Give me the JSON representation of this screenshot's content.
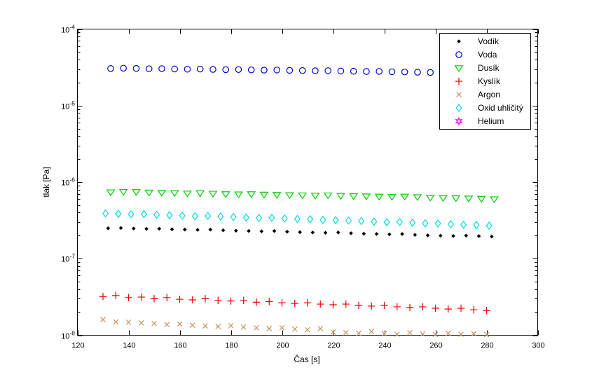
{
  "figure": {
    "background": "#ffffff",
    "frame_color": "#000000"
  },
  "chart_data": {
    "type": "scatter",
    "title": "",
    "xlabel": "Čas [s]",
    "ylabel": "tlak [Pa]",
    "x_scale": "linear",
    "y_scale": "log",
    "xlim": [
      120,
      300
    ],
    "ylim": [
      1e-08,
      0.0001
    ],
    "x_ticks": [
      120,
      140,
      160,
      180,
      200,
      220,
      240,
      260,
      280,
      300
    ],
    "y_tick_exponents": [
      -4,
      -5,
      -6,
      -7,
      -8
    ],
    "y_tick_base": "10",
    "grid": false,
    "legend_position": "upper right",
    "series": [
      {
        "key": "vodik",
        "name": "Vodík",
        "marker": "dot",
        "color": "#000000",
        "t": [
          132,
          137,
          142,
          147,
          152,
          157,
          162,
          167,
          172,
          177,
          182,
          187,
          192,
          197,
          202,
          207,
          212,
          217,
          222,
          227,
          232,
          237,
          242,
          247,
          252,
          257,
          262,
          267,
          272,
          277,
          282
        ],
        "p": [
          2.5e-07,
          2.52e-07,
          2.48e-07,
          2.45e-07,
          2.46e-07,
          2.42e-07,
          2.4e-07,
          2.38e-07,
          2.4e-07,
          2.35e-07,
          2.32e-07,
          2.3e-07,
          2.28e-07,
          2.3e-07,
          2.25e-07,
          2.22e-07,
          2.2e-07,
          2.18e-07,
          2.2e-07,
          2.15e-07,
          2.12e-07,
          2.1e-07,
          2.08e-07,
          2.1e-07,
          2.05e-07,
          2.02e-07,
          2e-07,
          1.98e-07,
          2e-07,
          1.97e-07,
          1.95e-07
        ]
      },
      {
        "key": "voda",
        "name": "Voda",
        "marker": "circle",
        "color": "#0000DD",
        "t": [
          133,
          138,
          143,
          148,
          153,
          158,
          163,
          168,
          173,
          178,
          183,
          188,
          193,
          198,
          203,
          208,
          213,
          218,
          223,
          228,
          233,
          238,
          243,
          248,
          253,
          258,
          263,
          268,
          273,
          278,
          283
        ],
        "p": [
          3.05e-05,
          3.08e-05,
          3.06e-05,
          3.03e-05,
          3.04e-05,
          3.01e-05,
          2.99e-05,
          3e-05,
          2.97e-05,
          2.95e-05,
          2.96e-05,
          2.93e-05,
          2.91e-05,
          2.92e-05,
          2.89e-05,
          2.87e-05,
          2.85e-05,
          2.86e-05,
          2.83e-05,
          2.81e-05,
          2.79e-05,
          2.8e-05,
          2.77e-05,
          2.75e-05,
          2.73e-05,
          2.71e-05,
          2.72e-05,
          2.69e-05,
          2.67e-05,
          2.65e-05,
          2.63e-05
        ]
      },
      {
        "key": "dusik",
        "name": "Dusík",
        "marker": "triangle-down",
        "color": "#00CF00",
        "t": [
          133,
          138,
          143,
          148,
          153,
          158,
          163,
          168,
          173,
          178,
          183,
          188,
          193,
          198,
          203,
          208,
          213,
          218,
          223,
          228,
          233,
          238,
          243,
          248,
          253,
          258,
          263,
          268,
          273,
          278,
          283
        ],
        "p": [
          7.4e-07,
          7.5e-07,
          7.45e-07,
          7.35e-07,
          7.3e-07,
          7.25e-07,
          7.15e-07,
          7.2e-07,
          7.1e-07,
          7e-07,
          6.95e-07,
          7e-07,
          6.9e-07,
          6.85e-07,
          6.8e-07,
          6.75e-07,
          6.7e-07,
          6.75e-07,
          6.65e-07,
          6.6e-07,
          6.55e-07,
          6.5e-07,
          6.45e-07,
          6.5e-07,
          6.4e-07,
          6.3e-07,
          6.25e-07,
          6.2e-07,
          6.15e-07,
          6.1e-07,
          6e-07
        ]
      },
      {
        "key": "kyslik",
        "name": "Kyslík",
        "marker": "plus",
        "color": "#EE0000",
        "t": [
          130,
          135,
          140,
          145,
          150,
          155,
          160,
          165,
          170,
          175,
          180,
          185,
          190,
          195,
          200,
          205,
          210,
          215,
          220,
          225,
          230,
          235,
          240,
          245,
          250,
          255,
          260,
          265,
          270,
          275,
          280
        ],
        "p": [
          3.2e-08,
          3.3e-08,
          3.1e-08,
          3.15e-08,
          3e-08,
          3.1e-08,
          2.95e-08,
          2.9e-08,
          3e-08,
          2.85e-08,
          2.8e-08,
          2.85e-08,
          2.7e-08,
          2.75e-08,
          2.65e-08,
          2.6e-08,
          2.65e-08,
          2.55e-08,
          2.5e-08,
          2.55e-08,
          2.45e-08,
          2.4e-08,
          2.45e-08,
          2.35e-08,
          2.3e-08,
          2.35e-08,
          2.25e-08,
          2.2e-08,
          2.25e-08,
          2.15e-08,
          2.1e-08
        ]
      },
      {
        "key": "argon",
        "name": "Argon",
        "marker": "x",
        "color": "#C4935B",
        "t": [
          130,
          135,
          140,
          145,
          150,
          155,
          160,
          165,
          170,
          175,
          180,
          185,
          190,
          195,
          200,
          205,
          210,
          215,
          220,
          225,
          230,
          235,
          240,
          245,
          250,
          255,
          260,
          265,
          270,
          275,
          280
        ],
        "p": [
          1.6e-08,
          1.5e-08,
          1.48e-08,
          1.45e-08,
          1.42e-08,
          1.38e-08,
          1.4e-08,
          1.35e-08,
          1.32e-08,
          1.3e-08,
          1.33e-08,
          1.28e-08,
          1.25e-08,
          1.22e-08,
          1.25e-08,
          1.2e-08,
          1.18e-08,
          1.22e-08,
          1.1e-08,
          1.08e-08,
          1.06e-08,
          1.12e-08,
          1.05e-08,
          1.03e-08,
          1.08e-08,
          1.04e-08,
          1.02e-08,
          1.06e-08,
          1.03e-08,
          1.05e-08,
          1.02e-08
        ]
      },
      {
        "key": "oxid-uhlicity",
        "name": "Oxid uhličitý",
        "marker": "diamond",
        "color": "#00DADA",
        "t": [
          131,
          136,
          141,
          146,
          151,
          156,
          161,
          166,
          171,
          176,
          181,
          186,
          191,
          196,
          201,
          206,
          211,
          216,
          221,
          226,
          231,
          236,
          241,
          246,
          251,
          256,
          261,
          266,
          271,
          276,
          281
        ],
        "p": [
          3.9e-07,
          3.85e-07,
          3.8e-07,
          3.82e-07,
          3.75e-07,
          3.7e-07,
          3.65e-07,
          3.6e-07,
          3.62e-07,
          3.55e-07,
          3.5e-07,
          3.45e-07,
          3.4e-07,
          3.42e-07,
          3.35e-07,
          3.3e-07,
          3.28e-07,
          3.22e-07,
          3.18e-07,
          3.15e-07,
          3.1e-07,
          3.05e-07,
          3e-07,
          3.02e-07,
          2.95e-07,
          2.9e-07,
          2.88e-07,
          2.82e-07,
          2.78e-07,
          2.75e-07,
          2.7e-07
        ]
      },
      {
        "key": "helium",
        "name": "Helium",
        "marker": "hexagram",
        "color": "#F000F0",
        "t": [],
        "p": []
      }
    ]
  }
}
